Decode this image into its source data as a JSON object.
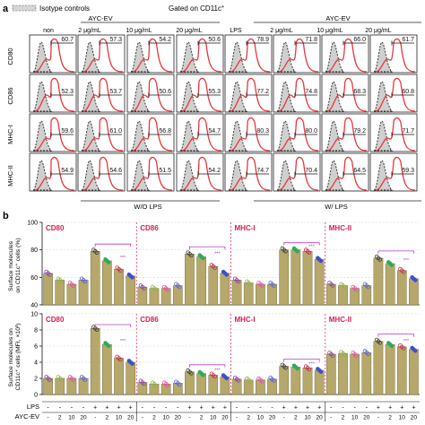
{
  "panel_a": {
    "label": "a",
    "legend_isotype": "Isotype controls",
    "gated_label": "Gated on CD11c",
    "gated_sup": "+",
    "group_aycev_left": "AYC-EV",
    "group_aycev_right": "AYC-EV",
    "columns": [
      "non",
      "2 μg/mL",
      "10 μg/mL",
      "20 μg/mL",
      "LPS",
      "2 μg/mL",
      "10 μg/mL",
      "20 μg/mL"
    ],
    "rows": [
      "CD80",
      "CD86",
      "MHC-I",
      "MHC-II"
    ],
    "values": [
      [
        "60.7",
        "57.3",
        "54.2",
        "50.6",
        "78.9",
        "71.8",
        "66.0",
        "61.7"
      ],
      [
        "52.3",
        "53.7",
        "50.6",
        "55.3",
        "77.2",
        "74.8",
        "68.3",
        "60.8"
      ],
      [
        "59.6",
        "61.0",
        "56.8",
        "54.7",
        "80.3",
        "80.0",
        "79.2",
        "71.7"
      ],
      [
        "54.9",
        "54.6",
        "51.5",
        "54.2",
        "74.7",
        "70.4",
        "64.5",
        "59.3"
      ]
    ],
    "bottom_left": "W/O LPS",
    "bottom_right": "W/ LPS"
  },
  "panel_b": {
    "label": "b",
    "table": {
      "lps_label": "LPS",
      "aycev_label": "AYC-EV",
      "lps": [
        "-",
        "-",
        "-",
        "-",
        "+",
        "+",
        "+",
        "+"
      ],
      "aycev": [
        "-",
        "2",
        "10",
        "20",
        "-",
        "2",
        "10",
        "20"
      ]
    }
  },
  "colors": {
    "bar": "#b5a86a",
    "sample_line": "#e8373d",
    "isotype_fill": "#cfcfcf",
    "marker_label": "#d6204f",
    "bracket": "#b23fc9",
    "points": [
      "#8e3fa6",
      "#8fb24a",
      "#e84ba4",
      "#5a5fd6",
      "#3a3a3a",
      "#2faa5a",
      "#c0304a",
      "#4050c8"
    ]
  },
  "chart_data": [
    {
      "type": "bar",
      "ylabel": "Surface molecules on CD11c+ cells (%)",
      "ylim": [
        40,
        100
      ],
      "yticks": [
        40,
        60,
        80,
        100
      ],
      "categories": [
        "-/-",
        "-/2",
        "-/10",
        "-/20",
        "+/-",
        "+/2",
        "+/10",
        "+/20"
      ],
      "series": [
        {
          "name": "CD80",
          "values": [
            63,
            58,
            55,
            58,
            79,
            72,
            66,
            61
          ]
        },
        {
          "name": "CD86",
          "values": [
            53,
            52,
            52,
            54,
            77,
            75,
            68,
            63
          ]
        },
        {
          "name": "MHC-I",
          "values": [
            58,
            56,
            55,
            55,
            80,
            80,
            79,
            73
          ]
        },
        {
          "name": "MHC-II",
          "values": [
            55,
            54,
            52,
            54,
            74,
            70,
            65,
            59
          ]
        }
      ],
      "significance": "***"
    },
    {
      "type": "bar",
      "ylabel": "Surface molecules on CD11c+ cells (MFI, ×10³)",
      "ylim": [
        0,
        10
      ],
      "yticks": [
        0,
        2,
        4,
        6,
        8,
        10
      ],
      "categories": [
        "-/-",
        "-/2",
        "-/10",
        "-/20",
        "+/-",
        "+/2",
        "+/10",
        "+/20"
      ],
      "series": [
        {
          "name": "CD80",
          "values": [
            2.0,
            2.0,
            2.0,
            2.0,
            8.2,
            6.2,
            4.5,
            4.0
          ]
        },
        {
          "name": "CD86",
          "values": [
            1.5,
            1.3,
            1.3,
            1.4,
            2.8,
            2.6,
            2.4,
            2.2
          ]
        },
        {
          "name": "MHC-I",
          "values": [
            1.9,
            1.8,
            1.8,
            1.9,
            3.5,
            3.4,
            3.3,
            3.0
          ]
        },
        {
          "name": "MHC-II",
          "values": [
            5.0,
            5.1,
            5.0,
            5.2,
            6.6,
            6.2,
            5.9,
            5.6
          ]
        }
      ],
      "significance": "***"
    }
  ]
}
